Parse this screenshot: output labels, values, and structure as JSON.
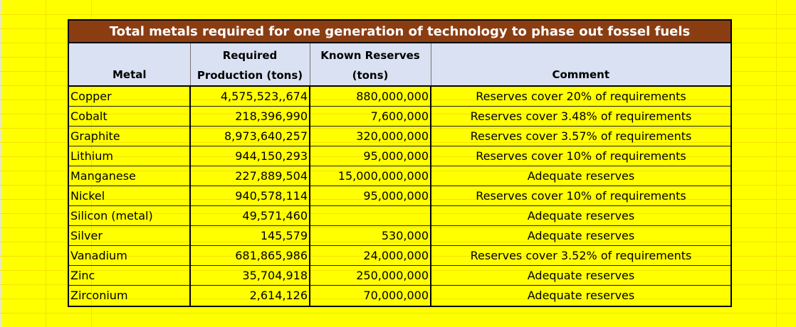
{
  "title": "Total metals required for one generation of technology to phase out fossel fuels",
  "headers": {
    "metal": "Metal",
    "required_line1": "Required",
    "required_line2": "Production (tons)",
    "reserves_line1": "Known Reserves",
    "reserves_line2": "(tons)",
    "comment": "Comment"
  },
  "rows": [
    {
      "metal": "Copper",
      "required": "4,575,523,,674",
      "reserves": "880,000,000",
      "comment": "Reserves cover 20% of requirements"
    },
    {
      "metal": "Cobalt",
      "required": "218,396,990",
      "reserves": "7,600,000",
      "comment": "Reserves cover 3.48% of requirements"
    },
    {
      "metal": "Graphite",
      "required": "8,973,640,257",
      "reserves": "320,000,000",
      "comment": "Reserves cover 3.57% of requirements"
    },
    {
      "metal": "Lithium",
      "required": "944,150,293",
      "reserves": "95,000,000",
      "comment": "Reserves cover 10% of requirements"
    },
    {
      "metal": "Manganese",
      "required": "227,889,504",
      "reserves": "15,000,000,000",
      "comment": "Adequate reserves"
    },
    {
      "metal": "Nickel",
      "required": "940,578,114",
      "reserves": "95,000,000",
      "comment": "Reserves cover 10% of requirements"
    },
    {
      "metal": "Silicon (metal)",
      "required": "49,571,460",
      "reserves": "",
      "comment": "Adequate reserves"
    },
    {
      "metal": "Silver",
      "required": "145,579",
      "reserves": "530,000",
      "comment": "Adequate reserves"
    },
    {
      "metal": "Vanadium",
      "required": "681,865,986",
      "reserves": "24,000,000",
      "comment": "Reserves cover 3.52% of requirements"
    },
    {
      "metal": "Zinc",
      "required": "35,704,918",
      "reserves": "250,000,000",
      "comment": "Adequate reserves"
    },
    {
      "metal": "Zirconium",
      "required": "2,614,126",
      "reserves": "70,000,000",
      "comment": "Adequate reserves"
    }
  ],
  "colors": {
    "background": "#ffff00",
    "title_bar": "#8b3d12",
    "header_fill": "#d9e1f2"
  }
}
